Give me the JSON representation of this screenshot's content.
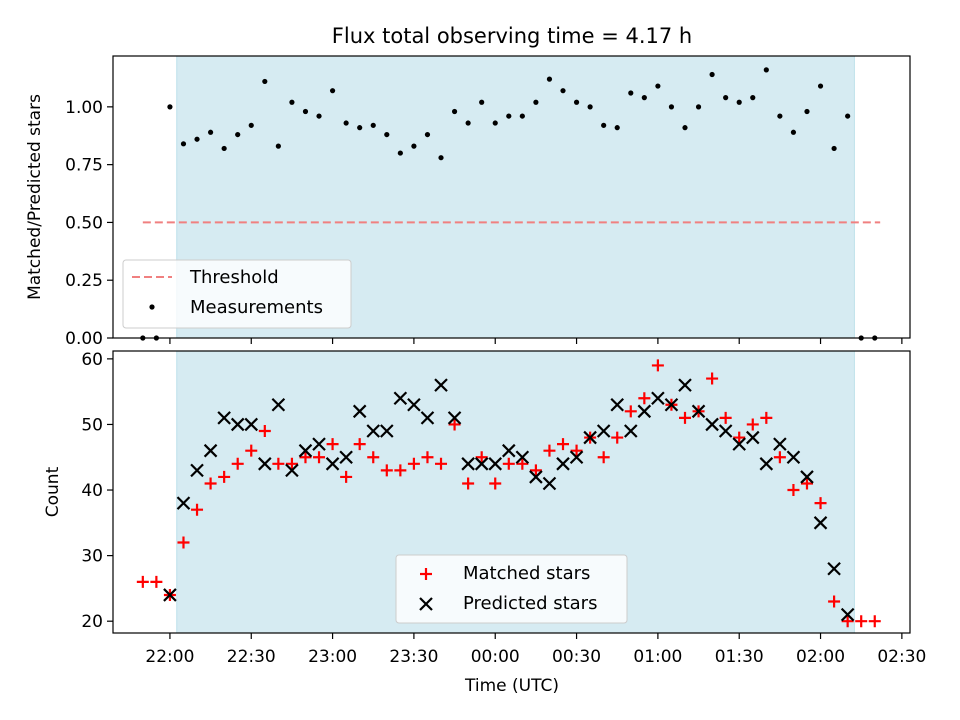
{
  "chart_data": {
    "title": "Flux total observing time = 4.17 h",
    "xlabel": "Time (UTC)",
    "x_tick_labels": [
      "22:00",
      "22:30",
      "23:00",
      "23:30",
      "00:00",
      "00:30",
      "01:00",
      "01:30",
      "02:00",
      "02:30"
    ],
    "x_tick_values": [
      0,
      30,
      60,
      90,
      120,
      150,
      180,
      210,
      240,
      270
    ],
    "xlim": [
      -21,
      273
    ],
    "shaded_region": [
      2.5,
      252.5
    ],
    "top": {
      "type": "scatter",
      "ylabel": "Matched/Predicted stars",
      "ylim": [
        0,
        1.22
      ],
      "y_ticks": [
        0,
        0.25,
        0.5,
        0.75,
        1.0
      ],
      "y_tick_labels": [
        "0.00",
        "0.25",
        "0.50",
        "0.75",
        "1.00"
      ],
      "legend": [
        "Threshold",
        "Measurements"
      ],
      "legend_position": "lower-left",
      "threshold": {
        "name": "Threshold",
        "y": 0.5,
        "x_range": [
          -10,
          262
        ],
        "color": "#f08080"
      },
      "measurements": {
        "name": "Measurements",
        "x": [
          -10,
          -5,
          0,
          5,
          10,
          15,
          20,
          25,
          30,
          35,
          40,
          45,
          50,
          55,
          60,
          65,
          70,
          75,
          80,
          85,
          90,
          95,
          100,
          105,
          110,
          115,
          120,
          125,
          130,
          135,
          140,
          145,
          150,
          155,
          160,
          165,
          170,
          175,
          180,
          185,
          190,
          195,
          200,
          205,
          210,
          215,
          220,
          225,
          230,
          235,
          240,
          245,
          250,
          255,
          260
        ],
        "y": [
          0.0,
          0.0,
          1.0,
          0.84,
          0.86,
          0.89,
          0.82,
          0.88,
          0.92,
          1.11,
          0.83,
          1.02,
          0.98,
          0.96,
          1.07,
          0.93,
          0.91,
          0.92,
          0.88,
          0.8,
          0.83,
          0.88,
          0.78,
          0.98,
          0.93,
          1.02,
          0.93,
          0.96,
          0.96,
          1.02,
          1.12,
          1.07,
          1.02,
          1.0,
          0.92,
          0.91,
          1.06,
          1.04,
          1.09,
          1.0,
          0.91,
          1.0,
          1.14,
          1.04,
          1.02,
          1.04,
          1.16,
          0.96,
          0.89,
          0.98,
          1.09,
          0.82,
          0.96,
          0.0,
          0.0
        ]
      }
    },
    "bottom": {
      "type": "scatter",
      "ylabel": "Count",
      "ylim": [
        18.2,
        61.2
      ],
      "y_ticks": [
        20,
        30,
        40,
        50,
        60
      ],
      "y_tick_labels": [
        "20",
        "30",
        "40",
        "50",
        "60"
      ],
      "legend": [
        "Matched stars",
        "Predicted stars"
      ],
      "legend_position": "lower-center",
      "series": [
        {
          "name": "Matched stars",
          "marker": "+",
          "color": "#ff0000",
          "x": [
            -10,
            -5,
            0,
            5,
            10,
            15,
            20,
            25,
            30,
            35,
            40,
            45,
            50,
            55,
            60,
            65,
            70,
            75,
            80,
            85,
            90,
            95,
            100,
            105,
            110,
            115,
            120,
            125,
            130,
            135,
            140,
            145,
            150,
            155,
            160,
            165,
            170,
            175,
            180,
            185,
            190,
            195,
            200,
            205,
            210,
            215,
            220,
            225,
            230,
            235,
            240,
            245,
            250,
            255,
            260
          ],
          "y": [
            26,
            26,
            24,
            32,
            37,
            41,
            42,
            44,
            46,
            49,
            44,
            44,
            45,
            45,
            47,
            42,
            47,
            45,
            43,
            43,
            44,
            45,
            44,
            50,
            41,
            45,
            41,
            44,
            44,
            43,
            46,
            47,
            46,
            48,
            45,
            48,
            52,
            54,
            59,
            53,
            51,
            52,
            57,
            51,
            48,
            50,
            51,
            45,
            40,
            41,
            38,
            23,
            20,
            20,
            20
          ]
        },
        {
          "name": "Predicted stars",
          "marker": "x",
          "color": "#000000",
          "x": [
            0,
            5,
            10,
            15,
            20,
            25,
            30,
            35,
            40,
            45,
            50,
            55,
            60,
            65,
            70,
            75,
            80,
            85,
            90,
            95,
            100,
            105,
            110,
            115,
            120,
            125,
            130,
            135,
            140,
            145,
            150,
            155,
            160,
            165,
            170,
            175,
            180,
            185,
            190,
            195,
            200,
            205,
            210,
            215,
            220,
            225,
            230,
            235,
            240,
            245,
            250
          ],
          "y": [
            24,
            38,
            43,
            46,
            51,
            50,
            50,
            44,
            53,
            43,
            46,
            47,
            44,
            45,
            52,
            49,
            49,
            54,
            53,
            51,
            56,
            51,
            44,
            44,
            44,
            46,
            45,
            42,
            41,
            44,
            45,
            48,
            49,
            53,
            49,
            52,
            54,
            53,
            56,
            52,
            50,
            49,
            47,
            48,
            44,
            47,
            45,
            42,
            35,
            28,
            21
          ]
        }
      ]
    }
  }
}
